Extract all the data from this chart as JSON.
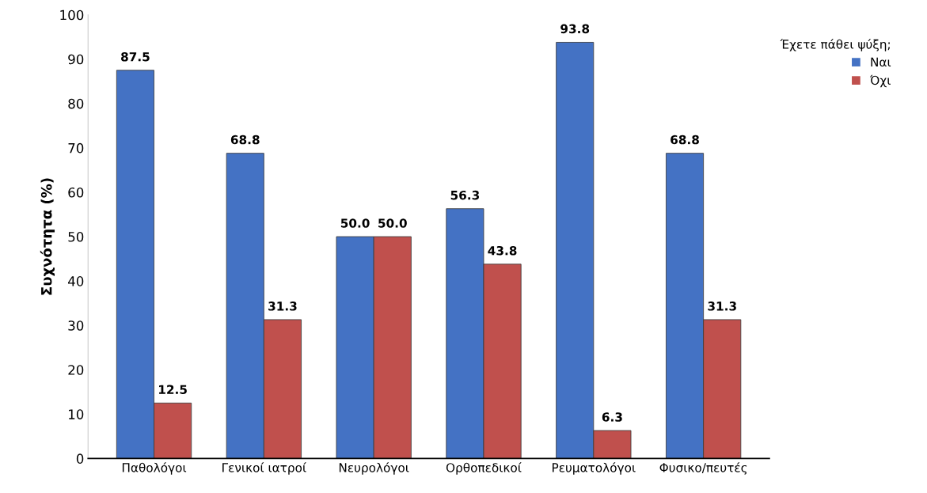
{
  "chart_data": {
    "type": "bar",
    "ylabel": "Συχνότητα (%)",
    "legend_title": "Έχετε πάθει ψύξη;",
    "legend": "top right",
    "grid": false,
    "categories": [
      "Παθολόγοι",
      "Γενικοί ιατροί",
      "Νευρολόγοι",
      "Ορθοπεδικοί",
      "Ρευματολόγοι",
      "Φυσικο/πευτές"
    ],
    "series": [
      {
        "name": "Ναι",
        "color": "#4472c4",
        "values": [
          87.5,
          68.8,
          50.0,
          56.3,
          93.8,
          68.8
        ],
        "value_labels": [
          "87.5",
          "68.8",
          "50.0",
          "56.3",
          "93.8",
          "68.8"
        ]
      },
      {
        "name": "Όχι",
        "color": "#c0504d",
        "values": [
          12.5,
          31.3,
          50.0,
          43.8,
          6.3,
          31.3
        ],
        "value_labels": [
          "12.5",
          "31.3",
          "50.0",
          "43.8",
          "6.3",
          "31.3"
        ]
      }
    ],
    "ylim": [
      0,
      100
    ],
    "yticks": [
      0,
      10,
      20,
      30,
      40,
      50,
      60,
      70,
      80,
      90,
      100
    ]
  }
}
